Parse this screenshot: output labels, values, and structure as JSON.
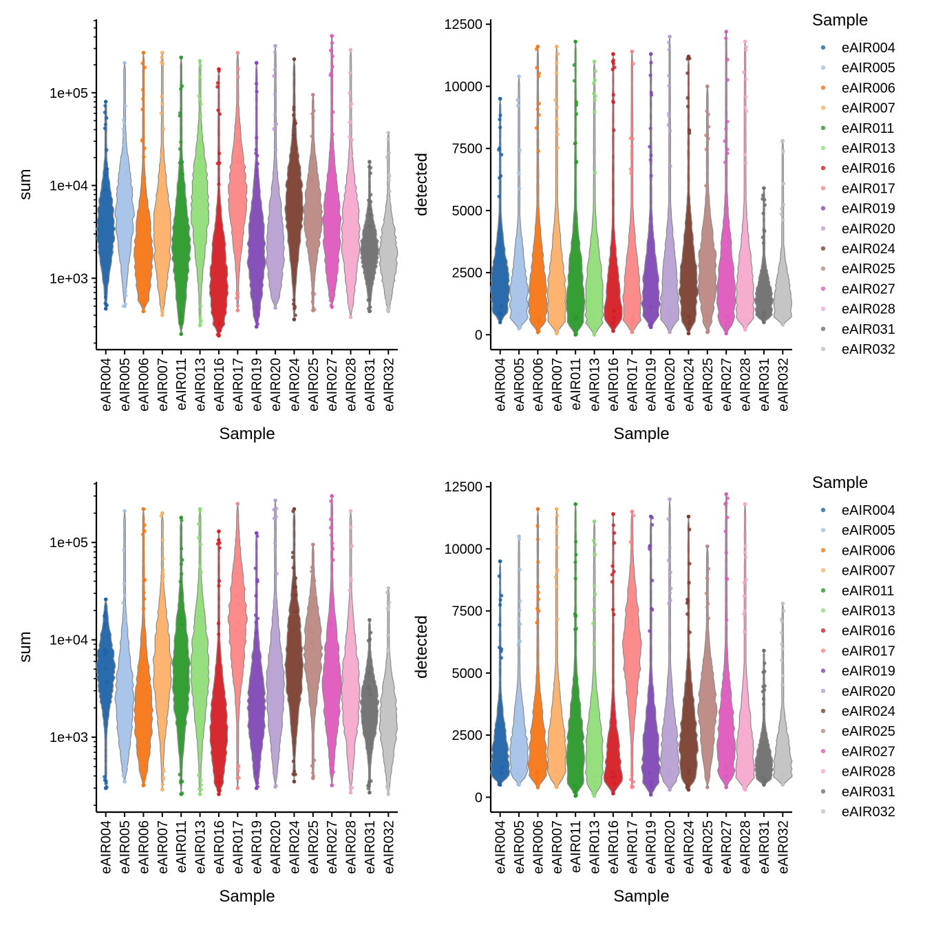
{
  "samples": [
    "eAIR004",
    "eAIR005",
    "eAIR006",
    "eAIR007",
    "eAIR011",
    "eAIR013",
    "eAIR016",
    "eAIR017",
    "eAIR019",
    "eAIR020",
    "eAIR024",
    "eAIR025",
    "eAIR027",
    "eAIR028",
    "eAIR031",
    "eAIR032"
  ],
  "colors": [
    "#1f63a8",
    "#a4c2e8",
    "#f77616",
    "#fdb069",
    "#2a9a2a",
    "#8fdd78",
    "#d41f25",
    "#fc8585",
    "#8148b6",
    "#b7a0d2",
    "#7c4032",
    "#bc8882",
    "#de58bd",
    "#f6a9cd",
    "#6f6f6f",
    "#c2c2c2"
  ],
  "legend": {
    "title": "Sample",
    "items": [
      "eAIR004",
      "eAIR005",
      "eAIR006",
      "eAIR007",
      "eAIR011",
      "eAIR013",
      "eAIR016",
      "eAIR017",
      "eAIR019",
      "eAIR020",
      "eAIR024",
      "eAIR025",
      "eAIR027",
      "eAIR028",
      "eAIR031",
      "eAIR032"
    ]
  },
  "chart_data": [
    {
      "type": "violin",
      "panel": "top-left",
      "xlabel": "Sample",
      "ylabel": "sum",
      "yscale": "log10",
      "ylim": [
        170,
        620000
      ],
      "yticks": [
        1000,
        10000,
        100000
      ],
      "ytick_labels": [
        "1e+03",
        "1e+04",
        "1e+05"
      ],
      "categories": [
        "eAIR004",
        "eAIR005",
        "eAIR006",
        "eAIR007",
        "eAIR011",
        "eAIR013",
        "eAIR016",
        "eAIR017",
        "eAIR019",
        "eAIR020",
        "eAIR024",
        "eAIR025",
        "eAIR027",
        "eAIR028",
        "eAIR031",
        "eAIR032"
      ],
      "min": [
        470,
        500,
        440,
        400,
        250,
        310,
        240,
        450,
        300,
        480,
        360,
        450,
        490,
        380,
        440,
        440
      ],
      "max": [
        80000,
        210000,
        270000,
        270000,
        240000,
        220000,
        180000,
        270000,
        210000,
        320000,
        230000,
        95000,
        410000,
        290000,
        18000,
        37000
      ],
      "median": [
        3500,
        5000,
        1800,
        3000,
        2200,
        6000,
        900,
        8000,
        2000,
        2200,
        6000,
        5000,
        3500,
        3000,
        2000,
        1800
      ]
    },
    {
      "type": "violin",
      "panel": "top-right",
      "xlabel": "Sample",
      "ylabel": "detected",
      "yscale": "linear",
      "ylim": [
        -600,
        12700
      ],
      "yticks": [
        0,
        2500,
        5000,
        7500,
        10000,
        12500
      ],
      "ytick_labels": [
        "0",
        "2500",
        "5000",
        "7500",
        "10000",
        "12500"
      ],
      "categories": [
        "eAIR004",
        "eAIR005",
        "eAIR006",
        "eAIR007",
        "eAIR011",
        "eAIR013",
        "eAIR016",
        "eAIR017",
        "eAIR019",
        "eAIR020",
        "eAIR024",
        "eAIR025",
        "eAIR027",
        "eAIR028",
        "eAIR031",
        "eAIR032"
      ],
      "min": [
        500,
        250,
        100,
        50,
        0,
        0,
        150,
        100,
        300,
        100,
        50,
        100,
        50,
        200,
        500,
        400
      ],
      "max": [
        9500,
        10400,
        11600,
        11600,
        11800,
        11000,
        11300,
        11400,
        11300,
        12000,
        11200,
        10000,
        12200,
        11800,
        5900,
        7800
      ],
      "median": [
        1800,
        1300,
        1200,
        1400,
        1200,
        1300,
        600,
        1200,
        1200,
        1200,
        1800,
        2500,
        1500,
        1300,
        1300,
        1100
      ]
    },
    {
      "type": "violin",
      "panel": "bottom-left",
      "xlabel": "Sample",
      "ylabel": "sum",
      "yscale": "log10",
      "ylim": [
        170,
        420000
      ],
      "yticks": [
        1000,
        10000,
        100000
      ],
      "ytick_labels": [
        "1e+03",
        "1e+04",
        "1e+05"
      ],
      "categories": [
        "eAIR004",
        "eAIR005",
        "eAIR006",
        "eAIR007",
        "eAIR011",
        "eAIR013",
        "eAIR016",
        "eAIR017",
        "eAIR019",
        "eAIR020",
        "eAIR024",
        "eAIR025",
        "eAIR027",
        "eAIR028",
        "eAIR031",
        "eAIR032"
      ],
      "min": [
        300,
        350,
        320,
        290,
        260,
        260,
        260,
        300,
        300,
        310,
        350,
        380,
        320,
        270,
        270,
        260
      ],
      "max": [
        26000,
        210000,
        220000,
        200000,
        180000,
        220000,
        130000,
        250000,
        125000,
        270000,
        220000,
        95000,
        300000,
        210000,
        16000,
        34000
      ],
      "median": [
        5000,
        2500,
        1800,
        5000,
        4500,
        5000,
        1200,
        15000,
        2000,
        3000,
        6000,
        8000,
        3500,
        3000,
        2000,
        1500
      ]
    },
    {
      "type": "violin",
      "panel": "bottom-right",
      "xlabel": "Sample",
      "ylabel": "detected",
      "yscale": "linear",
      "ylim": [
        -600,
        12700
      ],
      "yticks": [
        0,
        2500,
        5000,
        7500,
        10000,
        12500
      ],
      "ytick_labels": [
        "0",
        "2500",
        "5000",
        "7500",
        "10000",
        "12500"
      ],
      "categories": [
        "eAIR004",
        "eAIR005",
        "eAIR006",
        "eAIR007",
        "eAIR011",
        "eAIR013",
        "eAIR016",
        "eAIR017",
        "eAIR019",
        "eAIR020",
        "eAIR024",
        "eAIR025",
        "eAIR027",
        "eAIR028",
        "eAIR031",
        "eAIR032"
      ],
      "min": [
        500,
        500,
        400,
        400,
        50,
        50,
        150,
        400,
        100,
        300,
        300,
        400,
        400,
        300,
        500,
        500
      ],
      "max": [
        9500,
        10500,
        11600,
        11600,
        11800,
        11100,
        11400,
        11500,
        11300,
        12000,
        11300,
        10100,
        12200,
        11800,
        5900,
        7800
      ],
      "median": [
        1200,
        1500,
        1300,
        1600,
        1500,
        1400,
        400,
        6000,
        1300,
        1300,
        2000,
        3500,
        2000,
        1300,
        1200,
        1200
      ]
    }
  ]
}
